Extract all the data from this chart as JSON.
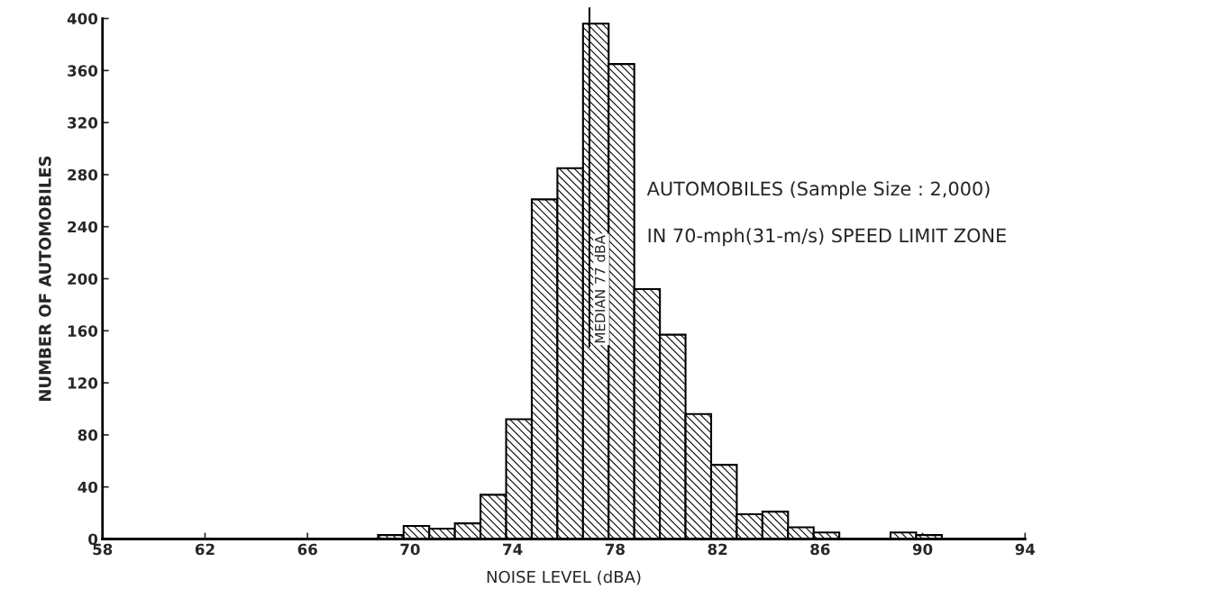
{
  "chart_data": {
    "type": "histogram",
    "xlabel": "NOISE LEVEL (dBA)",
    "ylabel": "NUMBER OF AUTOMOBILES",
    "bins": [
      68.75,
      69.75,
      70.75,
      71.75,
      72.75,
      73.75,
      74.75,
      75.75,
      76.75,
      77.75,
      78.75,
      79.75,
      80.75,
      81.75,
      82.75,
      83.75,
      84.75,
      85.75,
      86.75,
      87.75,
      88.75,
      89.75,
      90.75,
      91.75
    ],
    "values": [
      3,
      10,
      8,
      12,
      34,
      92,
      261,
      285,
      396,
      365,
      192,
      157,
      96,
      57,
      19,
      21,
      9,
      5,
      null,
      0,
      5,
      3,
      null
    ],
    "color": "#000000",
    "xlim": [
      58,
      94
    ],
    "xticks": [
      58,
      62,
      66,
      70,
      74,
      78,
      82,
      86,
      90,
      94
    ],
    "ylim": [
      0,
      400
    ],
    "yticks": [
      0,
      40,
      80,
      120,
      160,
      200,
      240,
      280,
      320,
      360,
      400
    ],
    "grid": false,
    "ref_lines": [
      {
        "axis": "x",
        "value": 77,
        "label": "MEDIAN 77 dBA",
        "color": "#000000",
        "line_style": "solid"
      }
    ],
    "annotations": [
      "AUTOMOBILES (Sample Size : 2,000)",
      "IN 70-mph(31-m/s) SPEED LIMIT ZONE"
    ]
  }
}
